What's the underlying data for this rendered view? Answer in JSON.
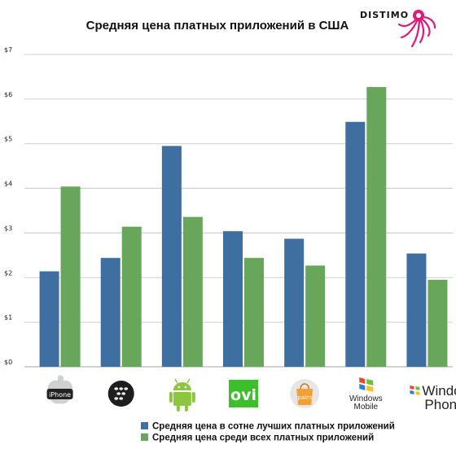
{
  "colors": {
    "series1": "#3f6ea0",
    "series2": "#68a65c",
    "grid": "#bfbfbf",
    "brand_logo": "#e0187a"
  },
  "brand": {
    "name": "DISTIMO",
    "logo_icon": "octopus-logo-icon"
  },
  "chart_data": {
    "type": "bar",
    "title": "Средняя цена платных приложений в США",
    "xlabel": "",
    "ylabel": "",
    "ylim": [
      0,
      7
    ],
    "ytick_labels": [
      "$0",
      "$1",
      "$2",
      "$3",
      "$4",
      "$5",
      "$6",
      "$7"
    ],
    "grid": true,
    "legend_position": "bottom",
    "categories": [
      {
        "label": "iPhone",
        "icon": "apple-iphone-logo-icon"
      },
      {
        "label": "",
        "icon": "blackberry-logo-icon"
      },
      {
        "label": "",
        "icon": "android-logo-icon"
      },
      {
        "label": "ovi",
        "icon": "nokia-ovi-logo-icon"
      },
      {
        "label": "palm",
        "icon": "palm-logo-icon"
      },
      {
        "label": "Windows Mobile",
        "icon": "windows-mobile-logo-icon"
      },
      {
        "label": "Windows Phone",
        "icon": "windows-phone-logo-icon"
      }
    ],
    "series": [
      {
        "name": "Средняя цена в сотне лучших платных приложений",
        "values": [
          2.14,
          2.44,
          4.95,
          3.04,
          2.87,
          5.49,
          2.54
        ]
      },
      {
        "name": "Средняя цена среди всех платных приложений",
        "values": [
          4.04,
          3.14,
          3.36,
          2.44,
          2.27,
          6.27,
          1.95
        ]
      }
    ]
  }
}
